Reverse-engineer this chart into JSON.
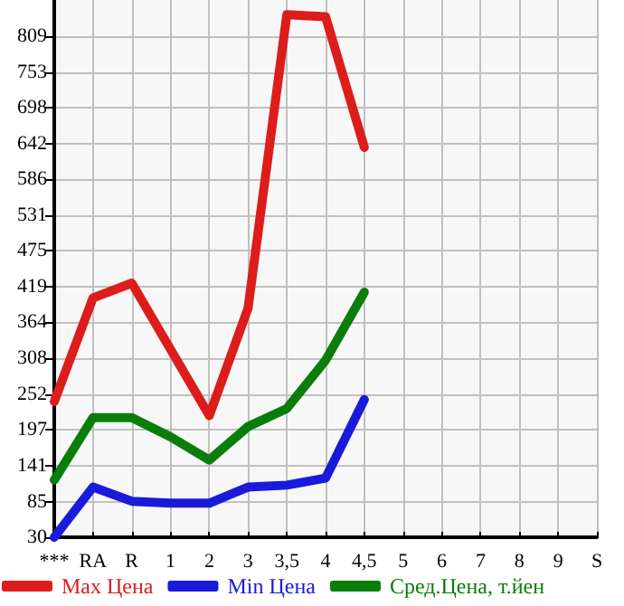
{
  "chart_data": {
    "type": "line",
    "categories": [
      "***",
      "RA",
      "R",
      "1",
      "2",
      "3",
      "3,5",
      "4",
      "4,5",
      "5",
      "6",
      "7",
      "8",
      "9",
      "S"
    ],
    "series": [
      {
        "name": "Max Цена",
        "color": "#dd1c1c",
        "values": [
          241,
          402,
          425,
          322,
          219,
          386,
          842,
          839,
          636,
          null,
          null,
          null,
          null,
          null,
          null
        ]
      },
      {
        "name": "Min Цена",
        "color": "#1a1adb",
        "values": [
          30,
          108,
          86,
          83,
          83,
          108,
          111,
          122,
          244,
          null,
          null,
          null,
          null,
          null,
          null
        ]
      },
      {
        "name": "Сред.Цена, т.йен",
        "color": "#0a7d0a",
        "values": [
          119,
          216,
          216,
          186,
          150,
          202,
          230,
          305,
          411,
          null,
          null,
          null,
          null,
          null,
          null
        ]
      }
    ],
    "ylim": [
      30,
      865
    ],
    "yticks": [
      30,
      85,
      141,
      197,
      252,
      308,
      364,
      419,
      475,
      531,
      586,
      642,
      698,
      753,
      809
    ],
    "grid": true,
    "legend": "bottom",
    "marker": "none",
    "line_style": "solid"
  }
}
